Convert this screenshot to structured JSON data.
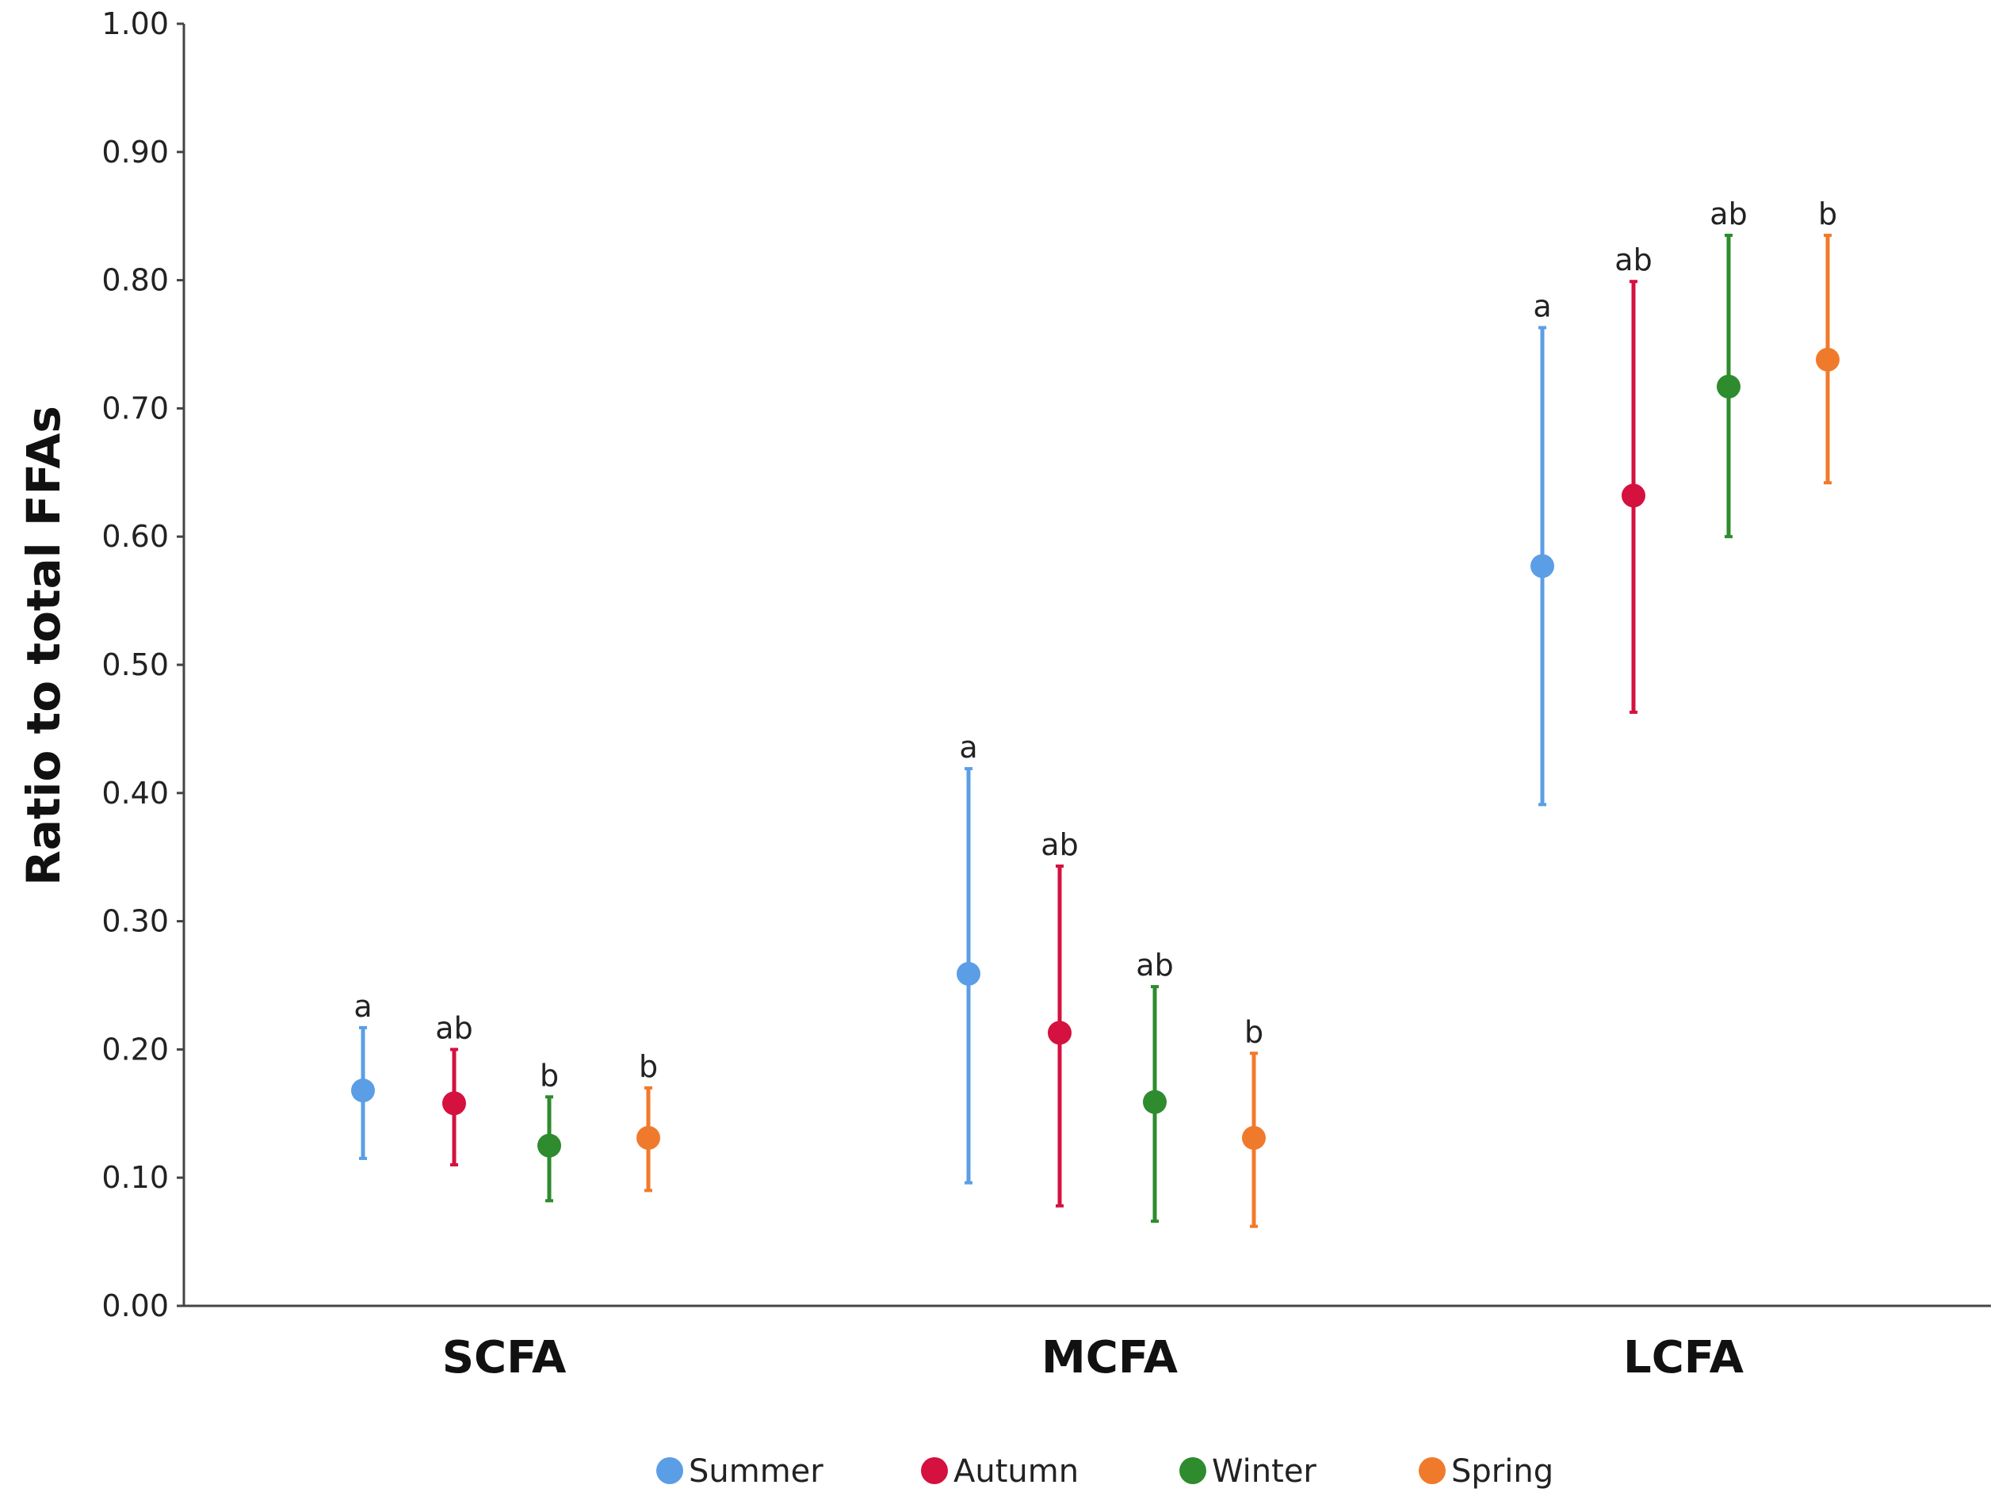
{
  "chart_data": {
    "type": "scatter",
    "subtype": "point-with-error-bars",
    "title": "",
    "xlabel": "",
    "ylabel": "Ratio to total FFAs",
    "ylim": [
      0,
      1
    ],
    "yticks": [
      "0.00",
      "0.10",
      "0.20",
      "0.30",
      "0.40",
      "0.50",
      "0.60",
      "0.70",
      "0.80",
      "0.90",
      "1.00"
    ],
    "grid": false,
    "legend_position": "bottom",
    "categories": [
      "SCFA",
      "MCFA",
      "LCFA"
    ],
    "series": [
      {
        "name": "Summer",
        "color": "#5b9ee6",
        "values": [
          0.168,
          0.259,
          0.577
        ],
        "lower": [
          0.115,
          0.096,
          0.391
        ],
        "upper": [
          0.217,
          0.419,
          0.763
        ],
        "letters": [
          "a",
          "a",
          "a"
        ]
      },
      {
        "name": "Autumn",
        "color": "#d4113f",
        "values": [
          0.158,
          0.213,
          0.632
        ],
        "lower": [
          0.11,
          0.078,
          0.463
        ],
        "upper": [
          0.2,
          0.343,
          0.799
        ],
        "letters": [
          "ab",
          "ab",
          "ab"
        ]
      },
      {
        "name": "Winter",
        "color": "#2e8b2e",
        "values": [
          0.125,
          0.159,
          0.717
        ],
        "lower": [
          0.082,
          0.066,
          0.6
        ],
        "upper": [
          0.163,
          0.249,
          0.835
        ],
        "letters": [
          "b",
          "ab",
          "ab"
        ]
      },
      {
        "name": "Spring",
        "color": "#f07a2b",
        "values": [
          0.131,
          0.131,
          0.738
        ],
        "lower": [
          0.09,
          0.062,
          0.642
        ],
        "upper": [
          0.17,
          0.197,
          0.835
        ],
        "letters": [
          "b",
          "b",
          "b"
        ]
      }
    ]
  },
  "colors": {
    "axis": "#444444",
    "text": "#222222"
  }
}
